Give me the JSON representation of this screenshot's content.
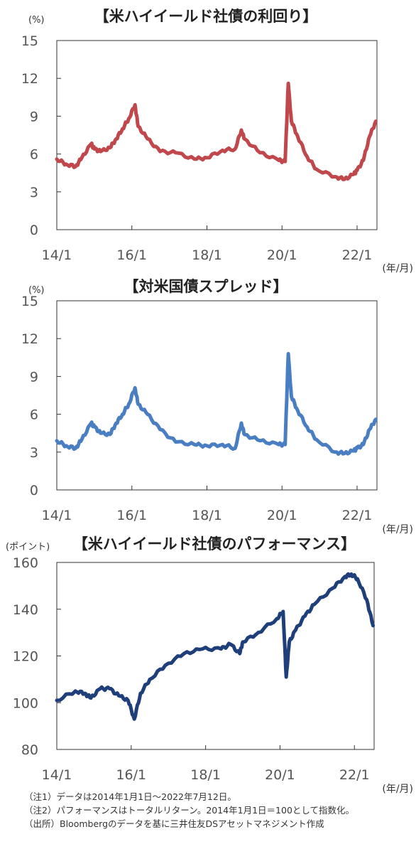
{
  "notes": [
    "（注1）データは2014年1月1日～2022年7月12日。",
    "（注2）パフォーマンスはトータルリターン。2014年1月1日＝100として指数化。",
    "（出所）Bloombergのデータを基に三井住友DSアセットマネジメント作成"
  ],
  "chart_data": [
    {
      "type": "line",
      "title": "【米ハイイールド社債の利回り】",
      "yunit": "(%)",
      "xunit": "(年/月)",
      "x_tick_labels": [
        "14/1",
        "16/1",
        "18/1",
        "20/1",
        "22/1"
      ],
      "y_ticks": [
        0,
        3,
        6,
        9,
        12,
        15
      ],
      "ylim": [
        0,
        15
      ],
      "xlim": [
        "2014-01-01",
        "2022-07-12"
      ],
      "color": "#c0474b",
      "series": [
        {
          "x": [
            "2014-01",
            "2014-04",
            "2014-07",
            "2014-09",
            "2014-12",
            "2015-01",
            "2015-03",
            "2015-06",
            "2015-08",
            "2015-10",
            "2015-12",
            "2016-02",
            "2016-03",
            "2016-06",
            "2016-10",
            "2017-03",
            "2017-09",
            "2018-01",
            "2018-06",
            "2018-10",
            "2018-12",
            "2019-01",
            "2019-06",
            "2019-12",
            "2020-02",
            "2020-03",
            "2020-04",
            "2020-06",
            "2020-09",
            "2020-12",
            "2021-06",
            "2021-09",
            "2021-12",
            "2022-01",
            "2022-03",
            "2022-05",
            "2022-07"
          ],
          "y": [
            5.6,
            5.2,
            5.0,
            5.7,
            6.8,
            6.4,
            6.2,
            6.5,
            7.2,
            8.0,
            8.8,
            9.9,
            8.2,
            7.2,
            6.2,
            6.1,
            5.6,
            5.7,
            6.3,
            6.4,
            7.9,
            7.2,
            6.1,
            5.5,
            5.4,
            11.6,
            8.6,
            7.4,
            5.8,
            4.8,
            4.2,
            4.0,
            4.4,
            4.7,
            5.5,
            7.4,
            8.6
          ]
        }
      ]
    },
    {
      "type": "line",
      "title": "【対米国債スプレッド】",
      "yunit": "(%)",
      "xunit": "(年/月)",
      "x_tick_labels": [
        "14/1",
        "16/1",
        "18/1",
        "20/1",
        "22/1"
      ],
      "y_ticks": [
        0,
        3,
        6,
        9,
        12,
        15
      ],
      "ylim": [
        0,
        15
      ],
      "xlim": [
        "2014-01-01",
        "2022-07-12"
      ],
      "color": "#4a7ec2",
      "series": [
        {
          "x": [
            "2014-01",
            "2014-04",
            "2014-07",
            "2014-09",
            "2014-12",
            "2015-01",
            "2015-03",
            "2015-06",
            "2015-08",
            "2015-10",
            "2015-12",
            "2016-02",
            "2016-03",
            "2016-06",
            "2016-10",
            "2017-03",
            "2017-09",
            "2018-01",
            "2018-06",
            "2018-10",
            "2018-12",
            "2019-01",
            "2019-06",
            "2019-12",
            "2020-02",
            "2020-03",
            "2020-04",
            "2020-06",
            "2020-09",
            "2020-12",
            "2021-06",
            "2021-09",
            "2021-12",
            "2022-01",
            "2022-03",
            "2022-05",
            "2022-07"
          ],
          "y": [
            3.9,
            3.5,
            3.3,
            4.0,
            5.3,
            5.0,
            4.5,
            4.4,
            5.3,
            6.0,
            6.8,
            8.1,
            6.8,
            6.0,
            4.8,
            3.8,
            3.6,
            3.5,
            3.6,
            3.3,
            5.3,
            4.4,
            3.9,
            3.6,
            3.6,
            10.8,
            7.4,
            6.3,
            5.0,
            4.0,
            3.0,
            2.9,
            3.1,
            3.3,
            3.6,
            4.8,
            5.6
          ]
        }
      ]
    },
    {
      "type": "line",
      "title": "【米ハイイールド社債のパフォーマンス】",
      "yunit": "(ポイント)",
      "xunit": "(年/月)",
      "x_tick_labels": [
        "14/1",
        "16/1",
        "18/1",
        "20/1",
        "22/1"
      ],
      "y_ticks": [
        80,
        100,
        120,
        140,
        160
      ],
      "ylim": [
        80,
        160
      ],
      "xlim": [
        "2014-01-01",
        "2022-07-12"
      ],
      "color": "#1f3f7a",
      "series": [
        {
          "x": [
            "2014-01",
            "2014-07",
            "2014-10",
            "2014-12",
            "2015-03",
            "2015-06",
            "2015-09",
            "2015-12",
            "2016-02",
            "2016-04",
            "2016-07",
            "2016-12",
            "2017-06",
            "2017-12",
            "2018-06",
            "2018-09",
            "2018-12",
            "2019-01",
            "2019-06",
            "2019-12",
            "2020-02",
            "2020-03",
            "2020-04",
            "2020-06",
            "2020-09",
            "2020-12",
            "2021-06",
            "2021-10",
            "2021-12",
            "2022-02",
            "2022-05",
            "2022-07"
          ],
          "y": [
            101,
            105,
            104,
            102,
            106,
            106,
            103,
            101,
            93,
            104,
            110,
            116,
            121,
            123,
            123,
            125,
            121,
            126,
            130,
            136,
            139,
            111,
            126,
            131,
            137,
            142,
            149,
            154,
            155,
            153,
            144,
            133
          ]
        }
      ]
    }
  ]
}
